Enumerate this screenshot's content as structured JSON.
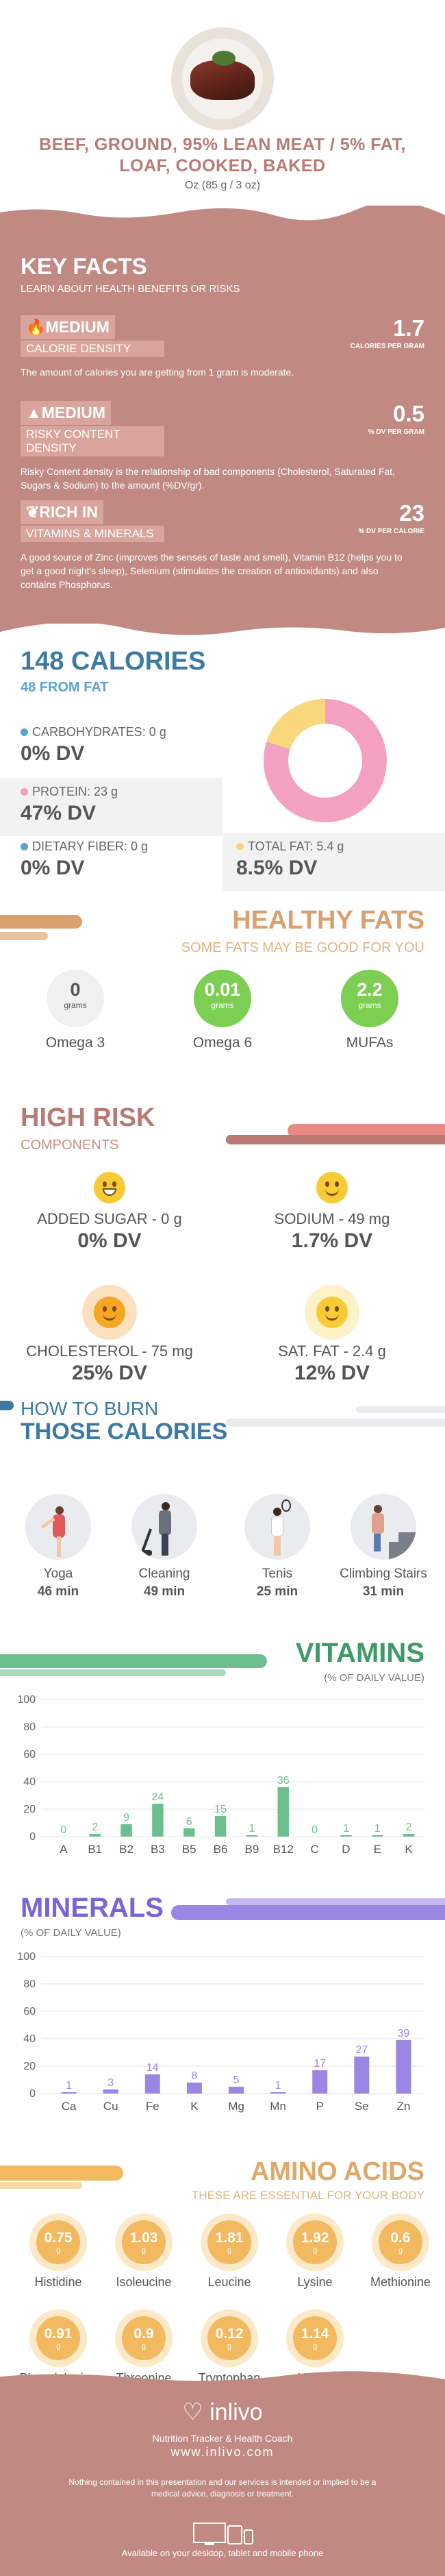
{
  "header": {
    "title": "BEEF, GROUND, 95% LEAN MEAT / 5% FAT, LOAF, COOKED, BAKED",
    "serving": "Oz (85 g / 3 oz)"
  },
  "key_facts": {
    "title": "KEY FACTS",
    "subtitle": "LEARN ABOUT HEALTH BENEFITS OR RISKS",
    "items": [
      {
        "level": "MEDIUM",
        "label": "CALORIE DENSITY",
        "value": "1.7",
        "unit": "CALORIES PER GRAM",
        "desc": "The amount of calories you are getting from 1 gram is moderate."
      },
      {
        "level": "MEDIUM",
        "label": "RISKY CONTENT DENSITY",
        "value": "0.5",
        "unit": "% DV PER GRAM",
        "desc": "Risky Content density is the relationship of bad components (Cholesterol, Saturated Fat, Sugars & Sodium) to the amount (%DV/gr)."
      },
      {
        "level": "RICH  IN",
        "label": "VITAMINS & MINERALS",
        "value": "23",
        "unit": "% DV PER CALORIE",
        "desc": "A good source of Zinc (improves the senses of taste and smell), Vitamin B12 (helps you to get a good night's sleep), Selenium (stimulates the creation of antioxidants) and also contains Phosphorus."
      }
    ]
  },
  "calories": {
    "title": "148 CALORIES",
    "from_fat": "48 FROM FAT",
    "carbs_label": "CARBOHYDRATES: 0 g",
    "carbs_dv": "0% DV",
    "protein_label": "PROTEIN: 23 g",
    "protein_dv": "47% DV",
    "fiber_label": "DIETARY FIBER: 0 g",
    "fiber_dv": "0% DV",
    "fat_label": "TOTAL FAT: 5.4 g",
    "fat_dv": "8.5% DV",
    "donut": {
      "protein_fraction": 0.8,
      "fat_fraction": 0.2
    },
    "colors": {
      "carbs": "#5aa3cf",
      "protein": "#f4a0c0",
      "fiber": "#5aa3cf",
      "fat": "#f9d77a"
    }
  },
  "healthy_fats": {
    "title": "HEALTHY FATS",
    "subtitle": "SOME FATS MAY BE GOOD FOR YOU",
    "items": [
      {
        "value": "0",
        "unit": "grams",
        "name": "Omega 3"
      },
      {
        "value": "0.01",
        "unit": "grams",
        "name": "Omega 6"
      },
      {
        "value": "2.2",
        "unit": "grams",
        "name": "MUFAs"
      }
    ]
  },
  "high_risk": {
    "title": "HIGH RISK",
    "subtitle": "COMPONENTS",
    "items": [
      {
        "label": "ADDED SUGAR - 0 g",
        "dv": "0% DV"
      },
      {
        "label": "SODIUM - 49 mg",
        "dv": "1.7% DV"
      },
      {
        "label": "CHOLESTEROL - 75 mg",
        "dv": "25% DV"
      },
      {
        "label": "SAT. FAT - 2.4 g",
        "dv": "12% DV"
      }
    ]
  },
  "burn": {
    "title1": "HOW TO BURN",
    "title2": "THOSE CALORIES",
    "items": [
      {
        "name": "Yoga",
        "min": "46 min"
      },
      {
        "name": "Cleaning",
        "min": "49 min"
      },
      {
        "name": "Tenis",
        "min": "25 min"
      },
      {
        "name": "Climbing Stairs",
        "min": "31 min"
      }
    ]
  },
  "vitamins": {
    "title": "VITAMINS",
    "subtitle": "(% OF DAILY VALUE)"
  },
  "minerals": {
    "title": "MINERALS",
    "subtitle": "(% OF DAILY VALUE)"
  },
  "chart_data": [
    {
      "type": "bar",
      "categories": [
        "A",
        "B1",
        "B2",
        "B3",
        "B5",
        "B6",
        "B9",
        "B12",
        "C",
        "D",
        "E",
        "K"
      ],
      "values": [
        0,
        2,
        9,
        24,
        6,
        15,
        1,
        36,
        0,
        1,
        1,
        2
      ],
      "ylim": [
        0,
        100
      ],
      "yticks": [
        0,
        20,
        40,
        60,
        80,
        100
      ],
      "color": "#6dbf8f"
    },
    {
      "type": "bar",
      "categories": [
        "Ca",
        "Cu",
        "Fe",
        "K",
        "Mg",
        "Mn",
        "P",
        "Se",
        "Zn"
      ],
      "values": [
        1,
        3,
        14,
        8,
        5,
        1,
        17,
        27,
        39
      ],
      "ylim": [
        0,
        100
      ],
      "yticks": [
        0,
        20,
        40,
        60,
        80,
        100
      ],
      "color": "#9b86e3"
    }
  ],
  "amino": {
    "title": "AMINO ACIDS",
    "subtitle": "THESE ARE ESSENTIAL FOR YOUR BODY",
    "unit": "g",
    "items": [
      {
        "value": "0.75",
        "name": "Histidine"
      },
      {
        "value": "1.03",
        "name": "Isoleucine"
      },
      {
        "value": "1.81",
        "name": "Leucine"
      },
      {
        "value": "1.92",
        "name": "Lysine"
      },
      {
        "value": "0.6",
        "name": "Methionine"
      },
      {
        "value": "0.91",
        "name": "Phenylalanine"
      },
      {
        "value": "0.9",
        "name": "Threonine"
      },
      {
        "value": "0.12",
        "name": "Tryptophan"
      },
      {
        "value": "1.14",
        "name": "Valine"
      }
    ]
  },
  "footer": {
    "logo": "inlivo",
    "tagline": "Nutrition Tracker & Health Coach",
    "url": "www.inlivo.com",
    "disclaimer": "Nothing contained in this presentation and our services is intended or implied to be a medical advice, diagnosis or treatment.",
    "available": "Available on your desktop, tablet and mobile phone"
  }
}
